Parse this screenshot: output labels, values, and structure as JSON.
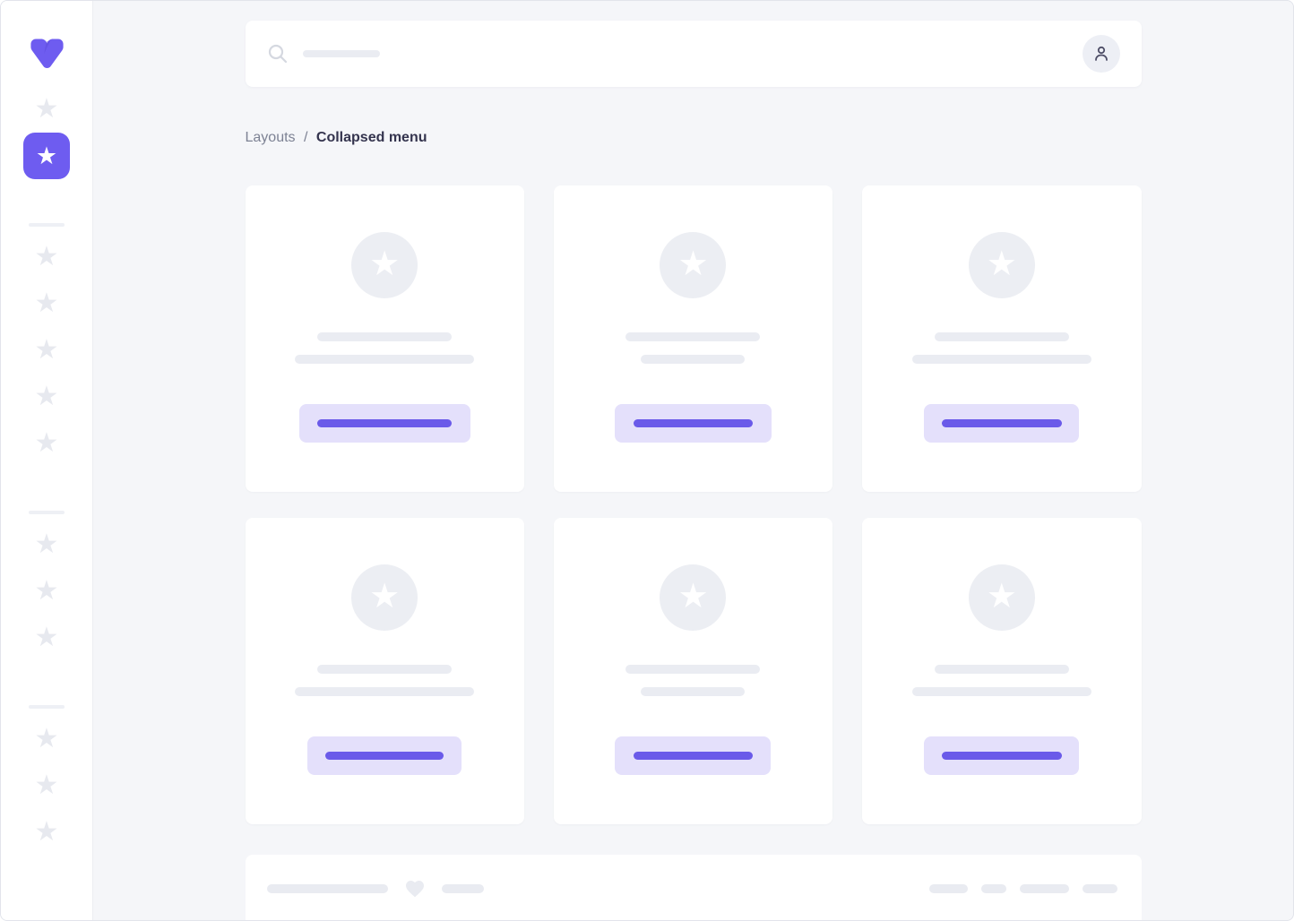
{
  "breadcrumb": {
    "parent": "Layouts",
    "separator": "/",
    "current": "Collapsed menu"
  },
  "icons": {
    "logo": "v-logo",
    "search": "search-icon",
    "user": "user-icon",
    "star": "star-icon",
    "heart": "heart-icon",
    "star_glyph": "★"
  },
  "colors": {
    "accent": "#6e5cf0",
    "accent_dark": "#6a5ae9",
    "lavender": "#e4e0fb",
    "skeleton": "#eaecf2",
    "page_bg": "#f5f6f9",
    "card_bg": "#ffffff",
    "text_primary": "#34344e",
    "text_secondary": "#7d8294"
  },
  "search": {
    "placeholder_bar_width": 86
  },
  "sidebar": {
    "items": [
      {
        "type": "item"
      },
      {
        "type": "item",
        "active": true
      },
      {
        "type": "divider"
      },
      {
        "type": "item"
      },
      {
        "type": "item"
      },
      {
        "type": "item"
      },
      {
        "type": "item"
      },
      {
        "type": "item"
      },
      {
        "type": "divider"
      },
      {
        "type": "item"
      },
      {
        "type": "item"
      },
      {
        "type": "item"
      },
      {
        "type": "divider"
      },
      {
        "type": "item"
      },
      {
        "type": "item"
      },
      {
        "type": "item"
      }
    ]
  },
  "cards": [
    {
      "line1_width": 150,
      "line2_width": 200,
      "button_width": 191,
      "button_bar_width": 150
    },
    {
      "line1_width": 150,
      "line2_width": 116,
      "button_width": 175,
      "button_bar_width": 133
    },
    {
      "line1_width": 150,
      "line2_width": 200,
      "button_width": 173,
      "button_bar_width": 134
    },
    {
      "line1_width": 150,
      "line2_width": 200,
      "button_width": 172,
      "button_bar_width": 132
    },
    {
      "line1_width": 150,
      "line2_width": 116,
      "button_width": 174,
      "button_bar_width": 133
    },
    {
      "line1_width": 150,
      "line2_width": 200,
      "button_width": 173,
      "button_bar_width": 134
    }
  ],
  "footer": {
    "left_bar_widths": [
      135,
      47
    ],
    "right_bar_widths": [
      43,
      28,
      55,
      39
    ]
  }
}
